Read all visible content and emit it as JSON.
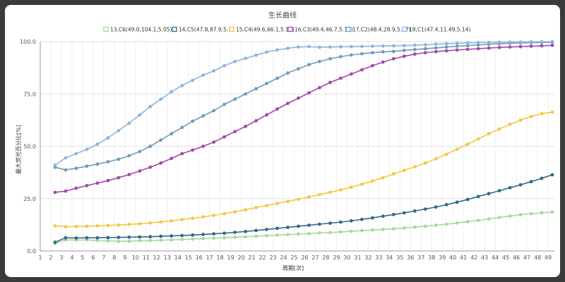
{
  "chart_data": {
    "type": "line",
    "title": "生长曲线",
    "xlabel": "周期[次]",
    "ylabel": "最大荧光百分比[%]",
    "ylim": [
      0,
      100
    ],
    "y_ticks": [
      "0.0",
      "25.0",
      "50.0",
      "75.0",
      "100.0"
    ],
    "x_ticks": [
      "1",
      "2",
      "3",
      "4",
      "5",
      "6",
      "7",
      "8",
      "9",
      "10",
      "11",
      "12",
      "13",
      "14",
      "15",
      "16",
      "17",
      "18",
      "19",
      "20",
      "21",
      "22",
      "23",
      "24",
      "25",
      "26",
      "27",
      "28",
      "29",
      "30",
      "31",
      "32",
      "33",
      "34",
      "35",
      "36",
      "37",
      "38",
      "39",
      "40",
      "41",
      "42",
      "43",
      "44",
      "45",
      "46",
      "47",
      "48",
      "49"
    ],
    "grid": true,
    "legend_position": "top",
    "x": [
      2.4,
      3.4,
      4.4,
      5.4,
      6.4,
      7.4,
      8.4,
      9.4,
      10.4,
      11.4,
      12.4,
      13.4,
      14.4,
      15.4,
      16.4,
      17.4,
      18.4,
      19.4,
      20.4,
      21.4,
      22.4,
      23.4,
      24.4,
      25.4,
      26.4,
      27.4,
      28.4,
      29.4,
      30.4,
      31.4,
      32.4,
      33.4,
      34.4,
      35.4,
      36.4,
      37.4,
      38.4,
      39.4,
      40.4,
      41.4,
      42.4,
      43.4,
      44.4,
      45.4,
      46.4,
      47.4,
      48.4,
      49.4
    ],
    "series": [
      {
        "name": "13,C6(49.0,104.1,5.05)",
        "color": "#a8d8a0",
        "values": [
          3.5,
          5.3,
          5.2,
          5.3,
          5.0,
          4.8,
          4.6,
          4.7,
          4.9,
          5.0,
          5.1,
          5.3,
          5.5,
          5.7,
          5.9,
          6.1,
          6.3,
          6.6,
          6.8,
          7.1,
          7.3,
          7.6,
          7.8,
          8.1,
          8.3,
          8.6,
          8.8,
          9.1,
          9.4,
          9.7,
          10.0,
          10.3,
          10.6,
          11.0,
          11.4,
          11.8,
          12.3,
          12.8,
          13.4,
          14.0,
          14.6,
          15.3,
          16.0,
          16.7,
          17.3,
          17.8,
          18.2,
          18.6
        ]
      },
      {
        "name": "14,C5(47.8,87.9,5.1)",
        "color": "#2f6b8a",
        "values": [
          4.2,
          6.3,
          6.2,
          6.3,
          6.3,
          6.4,
          6.5,
          6.6,
          6.7,
          6.8,
          7.0,
          7.2,
          7.4,
          7.6,
          7.9,
          8.2,
          8.5,
          8.9,
          9.3,
          9.8,
          10.3,
          10.8,
          11.3,
          11.8,
          12.3,
          12.8,
          13.3,
          13.8,
          14.4,
          15.1,
          15.8,
          16.6,
          17.4,
          18.2,
          19.1,
          20.0,
          21.0,
          22.1,
          23.3,
          24.6,
          26.0,
          27.4,
          28.8,
          30.2,
          31.6,
          33.1,
          34.7,
          36.4
        ]
      },
      {
        "name": "15,C4(49.6,66.1,5.18)",
        "color": "#f5c842",
        "values": [
          12.0,
          11.6,
          11.7,
          11.8,
          12.0,
          12.2,
          12.4,
          12.7,
          13.0,
          13.4,
          13.9,
          14.4,
          15.0,
          15.6,
          16.3,
          17.0,
          17.8,
          18.7,
          19.7,
          20.7,
          21.7,
          22.7,
          23.7,
          24.7,
          25.8,
          26.9,
          28.0,
          29.2,
          30.5,
          31.9,
          33.4,
          35.0,
          36.8,
          38.5,
          40.2,
          42.0,
          44.0,
          46.2,
          48.6,
          51.0,
          53.5,
          56.0,
          58.3,
          60.5,
          62.5,
          64.2,
          65.6,
          66.3
        ]
      },
      {
        "name": "16,C3(49.4,46.7,5.18)",
        "color": "#a04aa8",
        "values": [
          28.0,
          28.6,
          30.0,
          31.2,
          32.4,
          33.6,
          35.0,
          36.5,
          38.2,
          40.0,
          42.0,
          44.2,
          46.5,
          48.2,
          50.0,
          52.0,
          54.5,
          57.0,
          59.5,
          62.2,
          65.0,
          67.8,
          70.5,
          73.0,
          75.5,
          78.0,
          80.5,
          82.5,
          84.5,
          86.5,
          88.5,
          90.2,
          91.8,
          93.0,
          94.0,
          94.7,
          95.2,
          95.6,
          96.0,
          96.3,
          96.6,
          96.9,
          97.2,
          97.4,
          97.6,
          97.8,
          98.0,
          98.2
        ]
      },
      {
        "name": "17,C2(48.4,28.9,5.17)",
        "color": "#6f9cb8",
        "values": [
          40.0,
          38.7,
          39.5,
          40.5,
          41.5,
          42.6,
          43.8,
          45.5,
          47.5,
          50.0,
          53.0,
          56.0,
          59.0,
          62.0,
          64.5,
          67.0,
          70.0,
          72.5,
          75.0,
          77.5,
          80.0,
          82.5,
          85.0,
          87.0,
          89.0,
          90.5,
          91.8,
          92.8,
          93.6,
          94.2,
          94.7,
          95.1,
          95.3,
          95.8,
          96.2,
          96.6,
          97.0,
          97.4,
          97.8,
          98.1,
          98.4,
          98.7,
          99.0,
          99.2,
          99.4,
          99.5,
          99.6,
          99.7
        ]
      },
      {
        "name": "18,C1(47.4,11.49,5.14)",
        "color": "#8fb4e0",
        "values": [
          41.0,
          44.5,
          46.5,
          48.5,
          51.0,
          54.0,
          57.5,
          61.0,
          65.0,
          69.0,
          72.5,
          76.0,
          79.0,
          81.5,
          84.0,
          86.0,
          88.5,
          90.5,
          92.0,
          93.5,
          95.0,
          96.0,
          96.8,
          97.4,
          97.6,
          97.3,
          97.4,
          97.5,
          97.6,
          97.7,
          97.8,
          97.9,
          98.0,
          98.1,
          98.3,
          98.5,
          98.8,
          99.0,
          99.2,
          99.4,
          99.5,
          99.6,
          99.7,
          99.8,
          99.8,
          99.9,
          99.9,
          100.0
        ]
      }
    ]
  }
}
